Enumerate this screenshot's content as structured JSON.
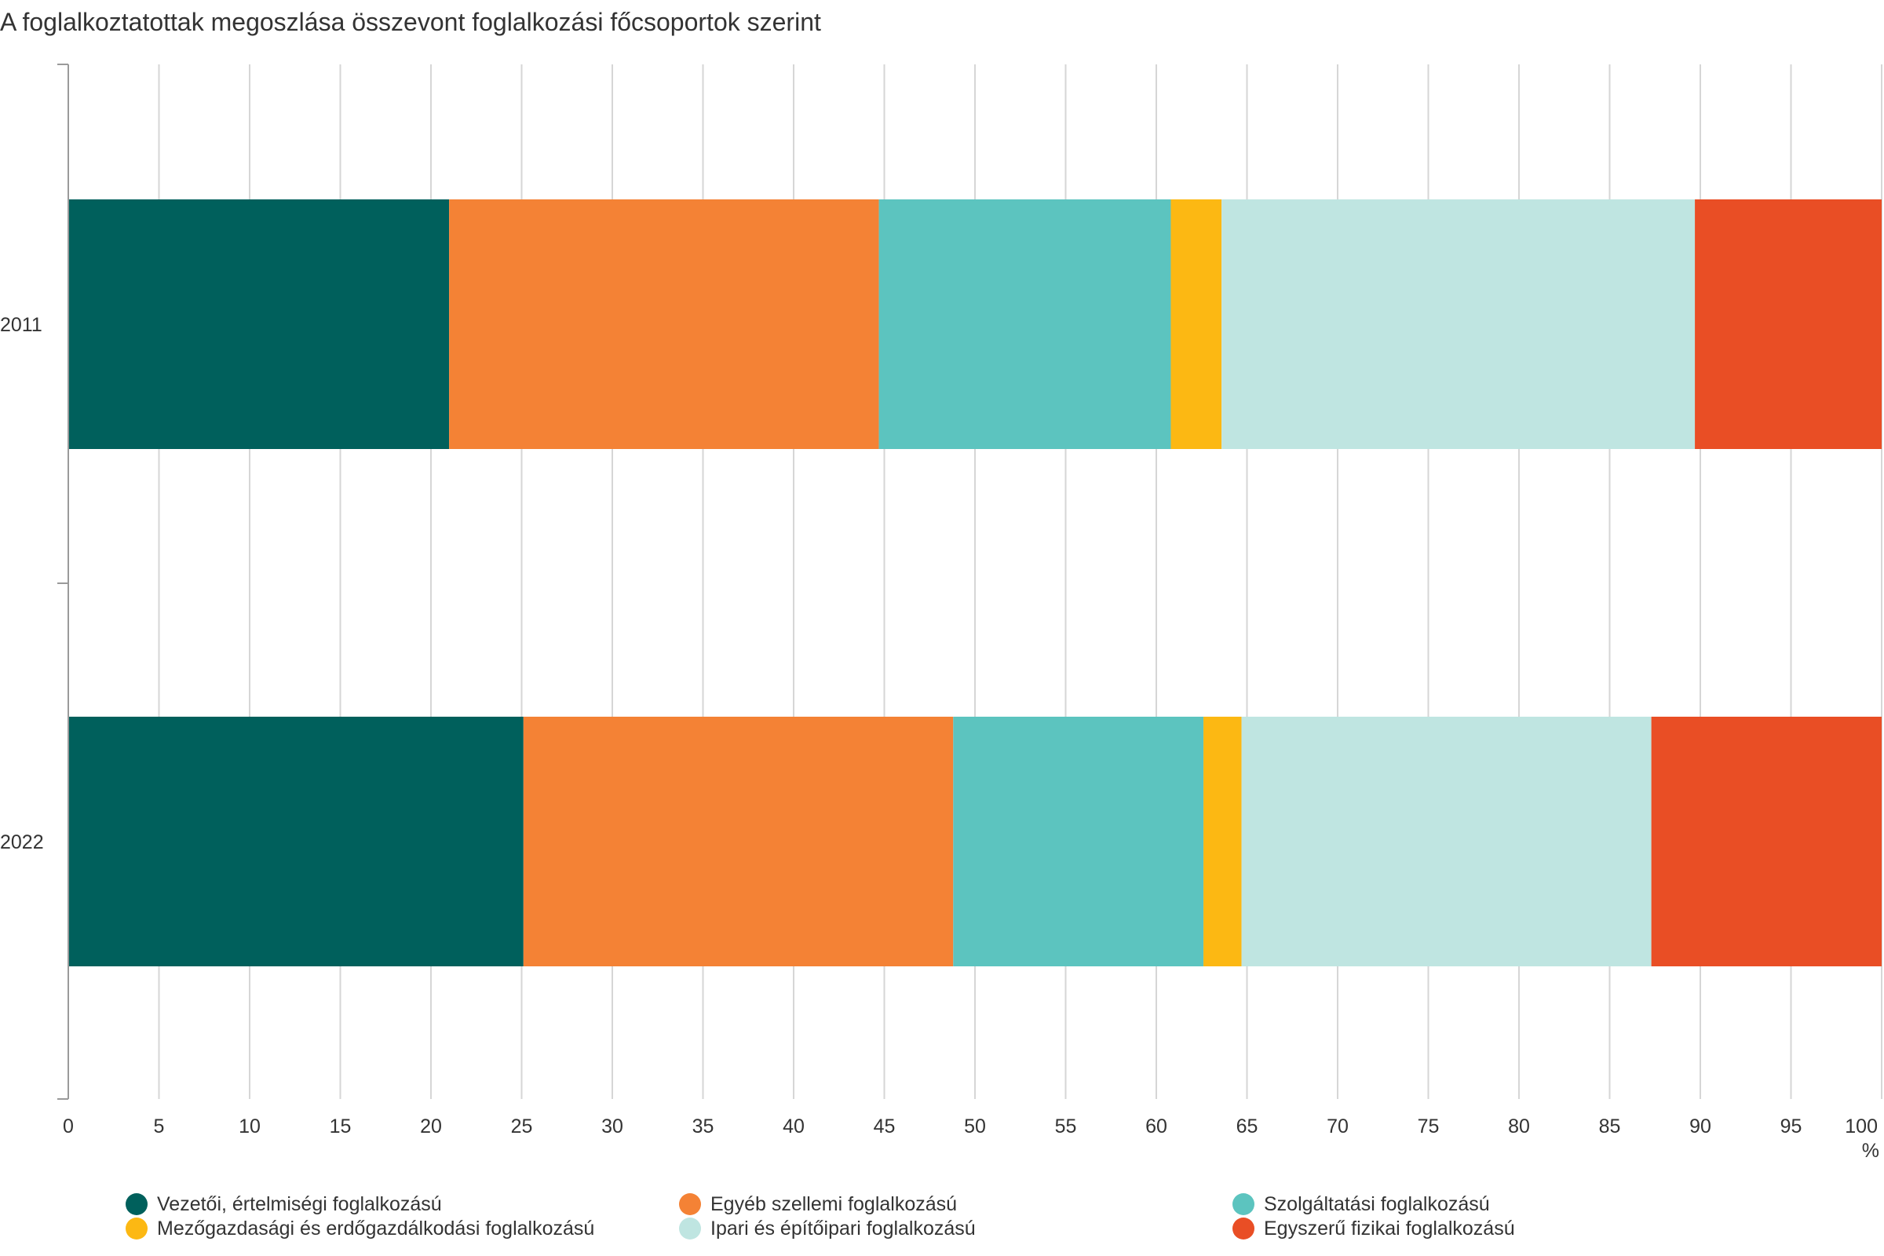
{
  "chart_data": {
    "type": "bar",
    "orientation": "horizontal",
    "stacked": true,
    "title": "A foglalkoztatottak megoszlása összevont foglalkozási főcsoportok szerint",
    "categories": [
      "2011",
      "2022"
    ],
    "series": [
      {
        "name": "Vezetői, értelmiségi foglalkozású",
        "color": "#00605c",
        "values": [
          21.0,
          25.1
        ]
      },
      {
        "name": "Egyéb szellemi foglalkozású",
        "color": "#f48235",
        "values": [
          23.7,
          23.7
        ]
      },
      {
        "name": "Szolgáltatási foglalkozású",
        "color": "#5cc4bf",
        "values": [
          16.1,
          13.8
        ]
      },
      {
        "name": "Mezőgazdasági és erdőgazdálkodási foglalkozású",
        "color": "#fcb813",
        "values": [
          2.8,
          2.1
        ]
      },
      {
        "name": "Ipari és építőipari foglalkozású",
        "color": "#bfe5e1",
        "values": [
          26.1,
          22.6
        ]
      },
      {
        "name": "Egyszerű fizikai foglalkozású",
        "color": "#e94e25",
        "values": [
          10.3,
          12.7
        ]
      }
    ],
    "xlim": [
      0,
      100
    ],
    "xticks": [
      "0",
      "5",
      "10",
      "15",
      "20",
      "25",
      "30",
      "35",
      "40",
      "45",
      "50",
      "55",
      "60",
      "65",
      "70",
      "75",
      "80",
      "85",
      "90",
      "95",
      "100"
    ],
    "xlabel": "%",
    "grid": true,
    "legend_position": "bottom"
  }
}
